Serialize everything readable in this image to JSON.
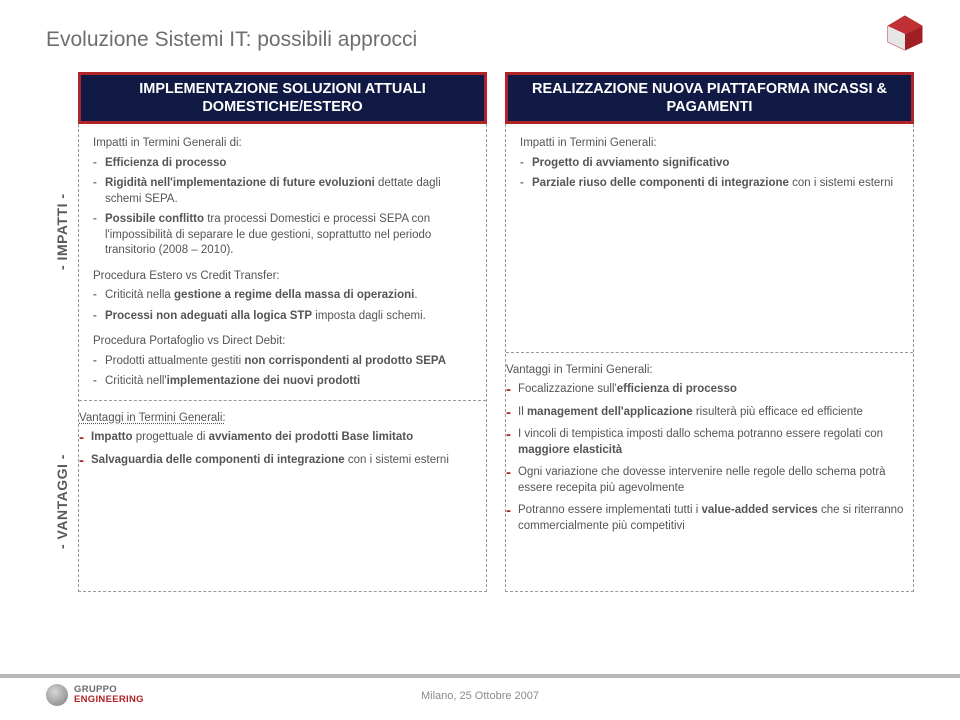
{
  "title": "Evoluzione Sistemi IT: possibili approcci",
  "sidebar": {
    "impatti": "- IMPATTI -",
    "vantaggi": "- VANTAGGI -"
  },
  "left": {
    "header": "IMPLEMENTAZIONE SOLUZIONI ATTUALI DOMESTICHE/ESTERO",
    "impatti_lead": "Impatti in Termini Generali di:",
    "impatti_items": [
      "<strong>Efficienza di processo</strong>",
      "<strong>Rigidità nell'implementazione di future evoluzioni</strong> dettate dagli schemi SEPA.",
      "<strong>Possibile conflitto</strong> tra processi Domestici e processi SEPA con l'impossibilità di separare le due gestioni, soprattutto nel periodo transitorio (2008 – 2010)."
    ],
    "proc_estero_lead": "Procedura Estero vs Credit Transfer:",
    "proc_estero_items": [
      "Criticità nella <strong>gestione a regime della massa di operazioni</strong>.",
      "<strong>Processi non adeguati alla logica STP</strong> imposta dagli schemi."
    ],
    "proc_port_lead": "Procedura Portafoglio vs Direct Debit:",
    "proc_port_items": [
      "Prodotti attualmente gestiti <strong>non corrispondenti al prodotto SEPA</strong>",
      "Criticità nell'<strong>implementazione dei nuovi prodotti</strong>"
    ],
    "vantaggi_lead": "Vantaggi in Termini Generali:",
    "vantaggi_items": [
      "<strong>Impatto</strong> progettuale di <strong>avviamento dei prodotti Base limitato</strong>",
      "<strong>Salvaguardia delle componenti di integrazione</strong> con i sistemi esterni"
    ]
  },
  "right": {
    "header": "REALIZZAZIONE NUOVA PIATTAFORMA INCASSI & PAGAMENTI",
    "impatti_lead": "Impatti in Termini Generali:",
    "impatti_items": [
      "<strong>Progetto di avviamento significativo</strong>",
      "<strong>Parziale riuso delle componenti di integrazione</strong> con i sistemi esterni"
    ],
    "vantaggi_lead": "Vantaggi in Termini Generali:",
    "vantaggi_items": [
      "Focalizzazione sull'<strong>efficienza di processo</strong>",
      "Il <strong>management dell'applicazione</strong> risulterà più efficace ed efficiente",
      "I vincoli di tempistica imposti dallo schema potranno essere regolati con <strong>maggiore elasticità</strong>",
      "Ogni variazione che dovesse intervenire nelle regole dello schema potrà essere recepita più agevolmente",
      "Potranno essere implementati tutti i <strong>value-added services</strong> che si riterranno commercialmente più competitivi"
    ]
  },
  "footer": {
    "text": "Milano, 25 Ottobre 2007",
    "brand1": "GRUPPO",
    "brand2": "ENGINEERING"
  },
  "colors": {
    "header_bg": "#101a44",
    "header_border": "#b02327",
    "dash": "#9a9a9a",
    "text": "#555555",
    "title": "#6e6e6e"
  }
}
